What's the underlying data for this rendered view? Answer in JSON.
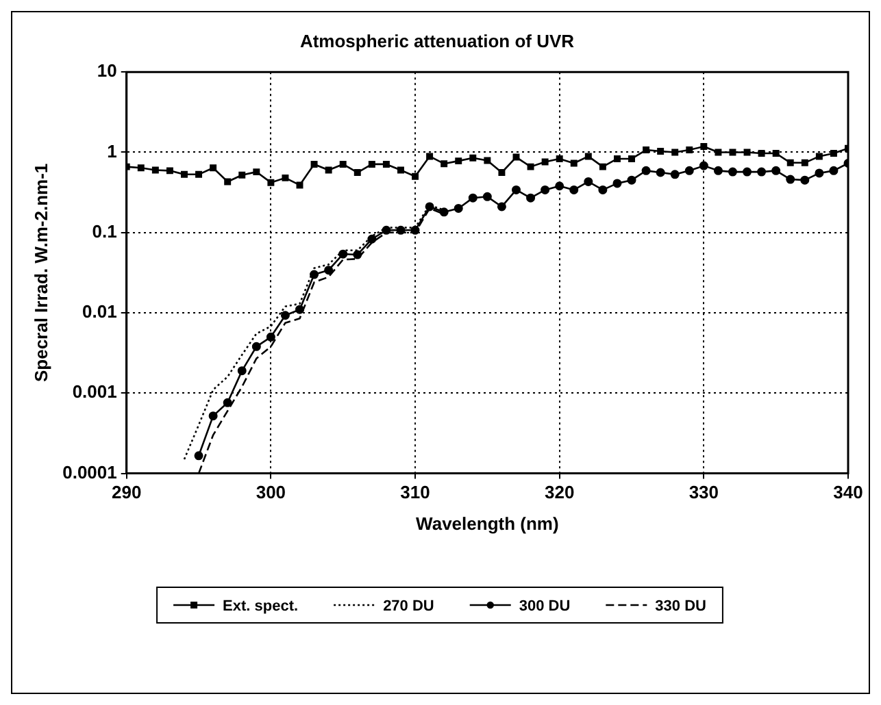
{
  "chart_data": {
    "type": "line",
    "title": "Atmospheric attenuation of UVR",
    "xlabel": "Wavelength (nm)",
    "ylabel": "Specral Irrad. W.m-2.nm-1",
    "log": "y",
    "grid": true,
    "legend": "bottom",
    "xlim": [
      290,
      340
    ],
    "xticks": [
      290,
      300,
      310,
      320,
      330,
      340
    ],
    "ylim": [
      0.0001,
      10
    ],
    "yticks": [
      0.0001,
      0.001,
      0.01,
      0.1,
      1,
      10
    ],
    "series": [
      {
        "name": "Ext. spect.",
        "color": "#000000",
        "marker": "square",
        "line_style": "solid",
        "x": [
          290,
          291,
          292,
          293,
          294,
          295,
          296,
          297,
          298,
          299,
          300,
          301,
          302,
          303,
          304,
          305,
          306,
          307,
          308,
          309,
          310,
          311,
          312,
          313,
          314,
          315,
          316,
          317,
          318,
          319,
          320,
          321,
          322,
          323,
          324,
          325,
          326,
          327,
          328,
          329,
          330,
          331,
          332,
          333,
          334,
          335,
          336,
          337,
          338,
          339,
          340
        ],
        "values": [
          0.66,
          0.64,
          0.6,
          0.59,
          0.53,
          0.53,
          0.64,
          0.43,
          0.52,
          0.57,
          0.42,
          0.48,
          0.39,
          0.71,
          0.6,
          0.71,
          0.56,
          0.71,
          0.71,
          0.6,
          0.5,
          0.89,
          0.72,
          0.78,
          0.85,
          0.79,
          0.56,
          0.87,
          0.66,
          0.76,
          0.83,
          0.73,
          0.89,
          0.66,
          0.83,
          0.83,
          1.07,
          1.03,
          1.0,
          1.07,
          1.18,
          1.0,
          1.0,
          1.0,
          0.97,
          0.97,
          0.74,
          0.74,
          0.89,
          0.97,
          1.12
        ]
      },
      {
        "name": "270 DU",
        "color": "#000000",
        "marker": "none",
        "line_style": "dotted",
        "x": [
          294,
          295,
          296,
          297,
          298,
          299,
          300,
          301,
          302,
          303,
          304,
          305,
          306,
          307,
          308,
          309,
          310,
          311,
          312
        ],
        "values": [
          0.00015,
          0.0004,
          0.0011,
          0.0016,
          0.003,
          0.0055,
          0.0068,
          0.012,
          0.013,
          0.036,
          0.04,
          0.06,
          0.06,
          0.09,
          0.115,
          0.115,
          0.115,
          0.22,
          0.19
        ]
      },
      {
        "name": "300 DU",
        "color": "#000000",
        "marker": "circle",
        "line_style": "solid",
        "x": [
          295,
          296,
          297,
          298,
          299,
          300,
          301,
          302,
          303,
          304,
          305,
          306,
          307,
          308,
          309,
          310,
          311,
          312,
          313,
          314,
          315,
          316,
          317,
          318,
          319,
          320,
          321,
          322,
          323,
          324,
          325,
          326,
          327,
          328,
          329,
          330,
          331,
          332,
          333,
          334,
          335,
          336,
          337,
          338,
          339,
          340
        ],
        "values": [
          0.000166,
          0.00052,
          0.00076,
          0.0019,
          0.0038,
          0.005,
          0.0093,
          0.011,
          0.03,
          0.034,
          0.054,
          0.053,
          0.083,
          0.107,
          0.107,
          0.107,
          0.21,
          0.18,
          0.2,
          0.27,
          0.28,
          0.21,
          0.34,
          0.27,
          0.34,
          0.38,
          0.34,
          0.43,
          0.34,
          0.41,
          0.45,
          0.59,
          0.56,
          0.53,
          0.59,
          0.68,
          0.59,
          0.57,
          0.57,
          0.57,
          0.59,
          0.46,
          0.45,
          0.55,
          0.59,
          0.73
        ]
      },
      {
        "name": "330 DU",
        "color": "#000000",
        "marker": "none",
        "line_style": "dashed",
        "x": [
          295,
          296,
          297,
          298,
          299,
          300,
          301,
          302,
          303,
          304,
          305,
          306,
          307,
          308,
          309,
          310,
          311,
          312
        ],
        "values": [
          0.0001,
          0.0003,
          0.0006,
          0.0012,
          0.0027,
          0.0038,
          0.0075,
          0.0085,
          0.024,
          0.028,
          0.046,
          0.047,
          0.075,
          0.1,
          0.1,
          0.1,
          0.2,
          0.17
        ]
      }
    ]
  }
}
